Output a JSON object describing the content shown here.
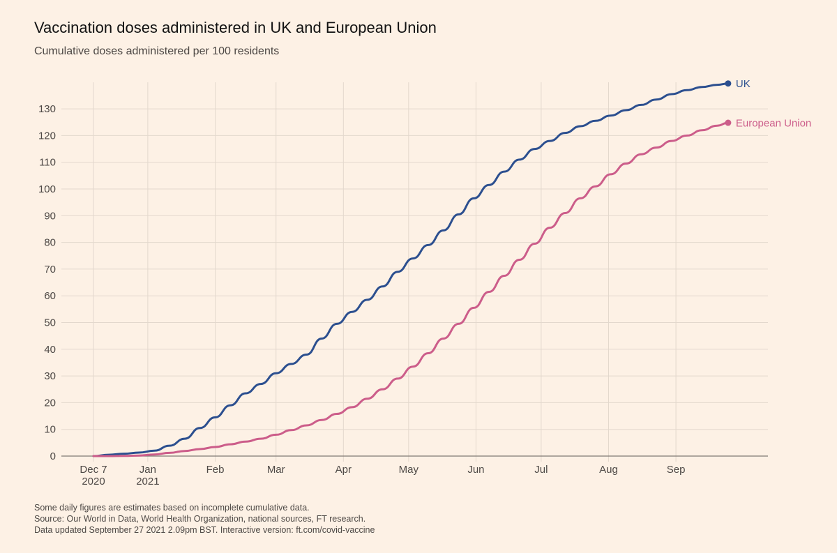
{
  "title": "Vaccination doses administered in UK and European Union",
  "subtitle": "Cumulative doses administered per 100 residents",
  "notes": [
    "Some daily figures are estimates based on incomplete cumulative data.",
    "Source: Our World in Data, World Health Organization, national sources, FT research.",
    "Data updated September 27 2021 2.09pm BST. Interactive version: ft.com/covid-vaccine"
  ],
  "chart_data": {
    "type": "line",
    "title": "Vaccination doses administered in UK and European Union",
    "subtitle": "Cumulative doses administered per 100 residents",
    "xlabel": "",
    "ylabel": "",
    "xlim": [
      "2020-11-22",
      "2021-10-15"
    ],
    "ylim": [
      0,
      140
    ],
    "grid": true,
    "legend": "direct labels at line ends",
    "y_ticks": [
      0,
      10,
      20,
      30,
      40,
      50,
      60,
      70,
      80,
      90,
      100,
      110,
      120,
      130
    ],
    "x_ticks": [
      {
        "date": "2020-12-07",
        "label": "Dec 7",
        "sublabel": "2020"
      },
      {
        "date": "2021-01-01",
        "label": "Jan",
        "sublabel": "2021"
      },
      {
        "date": "2021-02-01",
        "label": "Feb",
        "sublabel": ""
      },
      {
        "date": "2021-03-01",
        "label": "Mar",
        "sublabel": ""
      },
      {
        "date": "2021-04-01",
        "label": "Apr",
        "sublabel": ""
      },
      {
        "date": "2021-05-01",
        "label": "May",
        "sublabel": ""
      },
      {
        "date": "2021-06-01",
        "label": "Jun",
        "sublabel": ""
      },
      {
        "date": "2021-07-01",
        "label": "Jul",
        "sublabel": ""
      },
      {
        "date": "2021-08-01",
        "label": "Aug",
        "sublabel": ""
      },
      {
        "date": "2021-09-01",
        "label": "Sep",
        "sublabel": ""
      }
    ],
    "series": [
      {
        "name": "UK",
        "color": "#2c4f8f",
        "points": [
          [
            "2020-12-07",
            0
          ],
          [
            "2020-12-14",
            0.5
          ],
          [
            "2020-12-21",
            0.9
          ],
          [
            "2020-12-28",
            1.3
          ],
          [
            "2021-01-04",
            2.0
          ],
          [
            "2021-01-11",
            3.9
          ],
          [
            "2021-01-18",
            6.5
          ],
          [
            "2021-01-25",
            10.5
          ],
          [
            "2021-02-01",
            14.5
          ],
          [
            "2021-02-08",
            19.0
          ],
          [
            "2021-02-15",
            23.5
          ],
          [
            "2021-02-22",
            27.0
          ],
          [
            "2021-03-01",
            31.0
          ],
          [
            "2021-03-08",
            34.5
          ],
          [
            "2021-03-15",
            38.0
          ],
          [
            "2021-03-22",
            44.0
          ],
          [
            "2021-03-29",
            49.5
          ],
          [
            "2021-04-05",
            54.0
          ],
          [
            "2021-04-12",
            58.5
          ],
          [
            "2021-04-19",
            63.5
          ],
          [
            "2021-04-26",
            69.0
          ],
          [
            "2021-05-03",
            74.0
          ],
          [
            "2021-05-10",
            79.0
          ],
          [
            "2021-05-17",
            84.5
          ],
          [
            "2021-05-24",
            90.5
          ],
          [
            "2021-05-31",
            96.5
          ],
          [
            "2021-06-07",
            101.5
          ],
          [
            "2021-06-14",
            106.5
          ],
          [
            "2021-06-21",
            111.0
          ],
          [
            "2021-06-28",
            115.0
          ],
          [
            "2021-07-05",
            118.0
          ],
          [
            "2021-07-12",
            121.0
          ],
          [
            "2021-07-19",
            123.5
          ],
          [
            "2021-07-26",
            125.5
          ],
          [
            "2021-08-02",
            127.5
          ],
          [
            "2021-08-09",
            129.5
          ],
          [
            "2021-08-16",
            131.5
          ],
          [
            "2021-08-23",
            133.5
          ],
          [
            "2021-08-30",
            135.5
          ],
          [
            "2021-09-06",
            137.0
          ],
          [
            "2021-09-13",
            138.2
          ],
          [
            "2021-09-20",
            139.0
          ],
          [
            "2021-09-25",
            139.5
          ]
        ]
      },
      {
        "name": "European Union",
        "color": "#cc5d8a",
        "points": [
          [
            "2020-12-07",
            0
          ],
          [
            "2020-12-14",
            0
          ],
          [
            "2020-12-21",
            0.05
          ],
          [
            "2020-12-28",
            0.2
          ],
          [
            "2021-01-04",
            0.6
          ],
          [
            "2021-01-11",
            1.2
          ],
          [
            "2021-01-18",
            1.9
          ],
          [
            "2021-01-25",
            2.6
          ],
          [
            "2021-02-01",
            3.4
          ],
          [
            "2021-02-08",
            4.4
          ],
          [
            "2021-02-15",
            5.4
          ],
          [
            "2021-02-22",
            6.5
          ],
          [
            "2021-03-01",
            8.0
          ],
          [
            "2021-03-08",
            9.7
          ],
          [
            "2021-03-15",
            11.5
          ],
          [
            "2021-03-22",
            13.5
          ],
          [
            "2021-03-29",
            15.8
          ],
          [
            "2021-04-05",
            18.3
          ],
          [
            "2021-04-12",
            21.5
          ],
          [
            "2021-04-19",
            25.0
          ],
          [
            "2021-04-26",
            29.0
          ],
          [
            "2021-05-03",
            33.5
          ],
          [
            "2021-05-10",
            38.5
          ],
          [
            "2021-05-17",
            44.0
          ],
          [
            "2021-05-24",
            49.5
          ],
          [
            "2021-05-31",
            55.5
          ],
          [
            "2021-06-07",
            61.5
          ],
          [
            "2021-06-14",
            67.5
          ],
          [
            "2021-06-21",
            73.5
          ],
          [
            "2021-06-28",
            79.5
          ],
          [
            "2021-07-05",
            85.5
          ],
          [
            "2021-07-12",
            91.0
          ],
          [
            "2021-07-19",
            96.5
          ],
          [
            "2021-07-26",
            101.0
          ],
          [
            "2021-08-02",
            105.5
          ],
          [
            "2021-08-09",
            109.5
          ],
          [
            "2021-08-16",
            113.0
          ],
          [
            "2021-08-23",
            115.5
          ],
          [
            "2021-08-30",
            118.0
          ],
          [
            "2021-09-06",
            120.0
          ],
          [
            "2021-09-13",
            122.0
          ],
          [
            "2021-09-20",
            123.7
          ],
          [
            "2021-09-25",
            124.8
          ]
        ]
      }
    ]
  }
}
